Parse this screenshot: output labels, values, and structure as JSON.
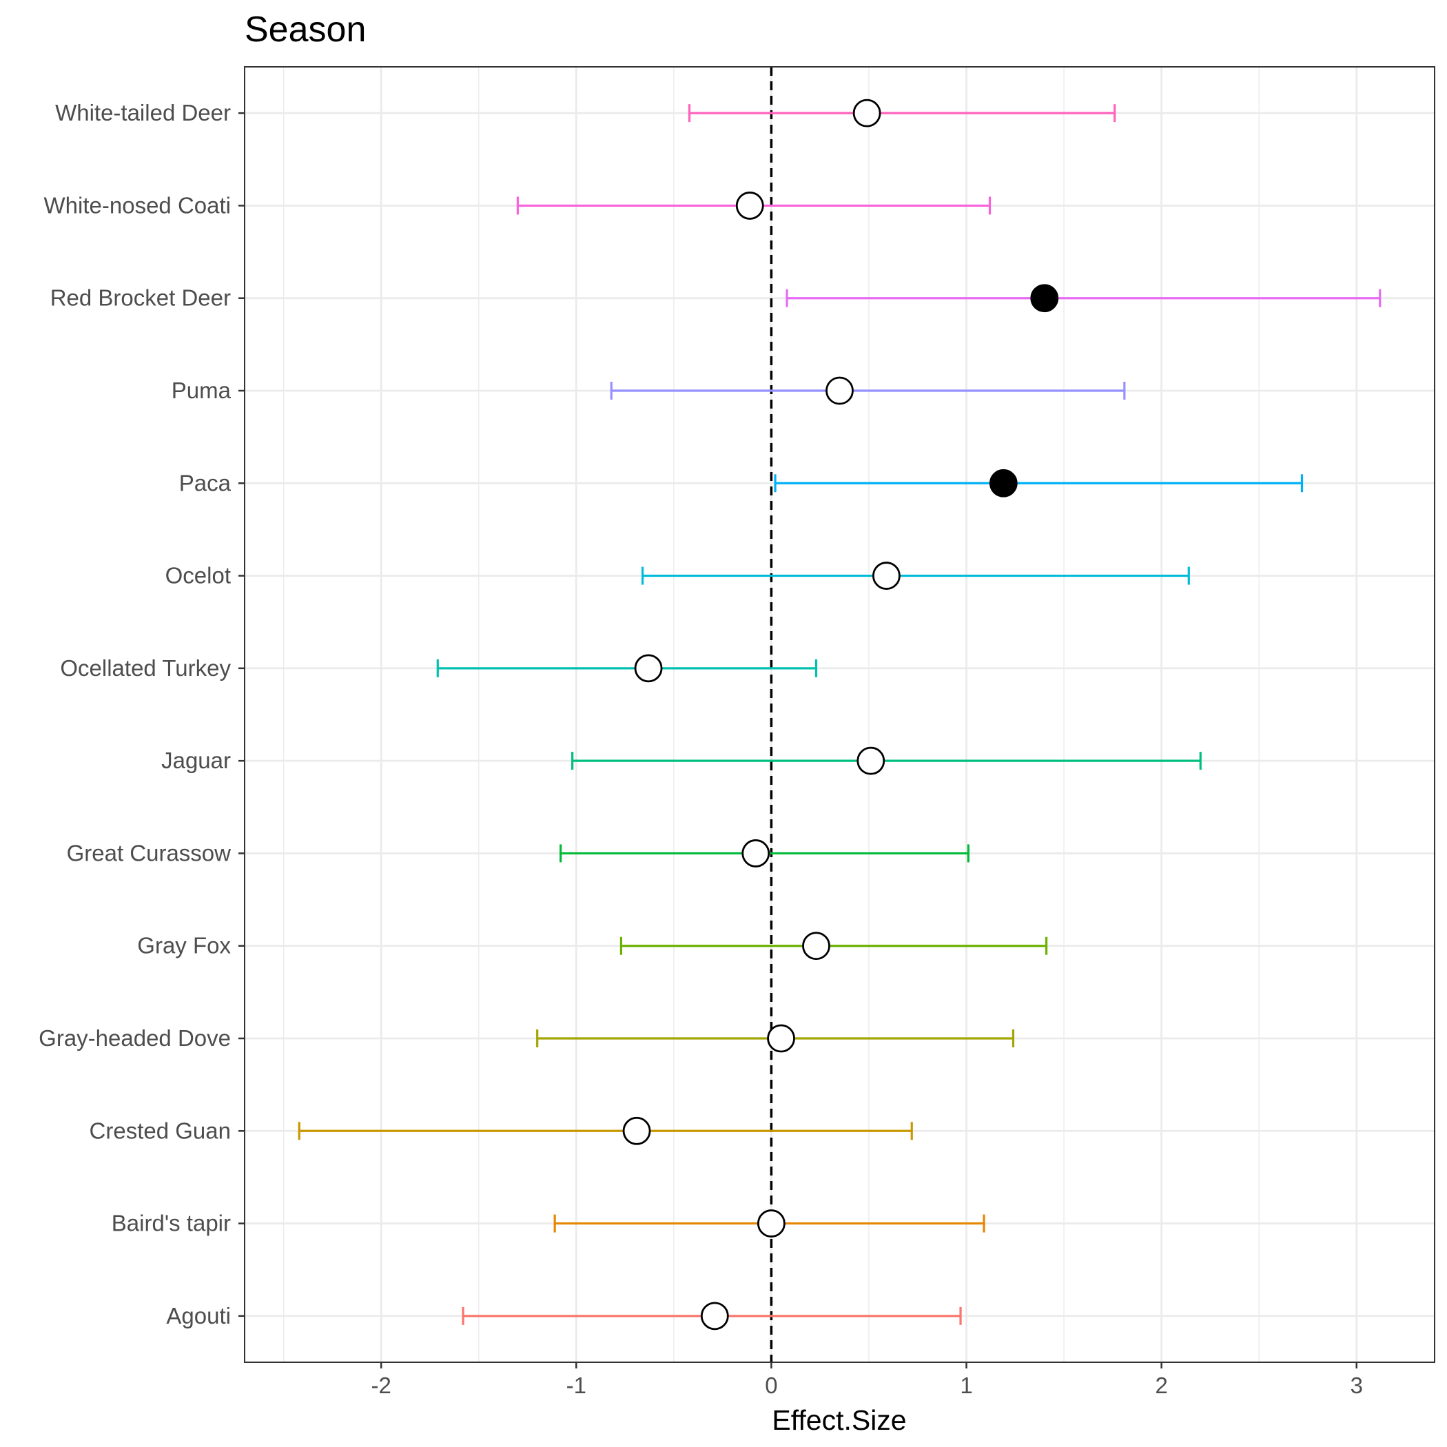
{
  "chart_data": {
    "type": "forest",
    "title": "Season",
    "xlabel": "Effect.Size",
    "ylabel": "",
    "xlim": [
      -2.7,
      3.4
    ],
    "xticks": [
      -2,
      -1,
      0,
      1,
      2,
      3
    ],
    "xtick_labels": [
      "-2",
      "-1",
      "0",
      "1",
      "2",
      "3"
    ],
    "reference_line": 0,
    "grid": true,
    "legend": "none",
    "categories": [
      "Agouti",
      "Baird's tapir",
      "Crested Guan",
      "Gray-headed Dove",
      "Gray Fox",
      "Great Curassow",
      "Jaguar",
      "Ocellated Turkey",
      "Ocelot",
      "Paca",
      "Puma",
      "Red Brocket Deer",
      "White-nosed Coati",
      "White-tailed Deer"
    ],
    "points": [
      {
        "species": "Agouti",
        "estimate": -0.29,
        "lower": -1.58,
        "upper": 0.97,
        "significant": false,
        "color": "#F8766D"
      },
      {
        "species": "Baird's tapir",
        "estimate": 0.0,
        "lower": -1.11,
        "upper": 1.09,
        "significant": false,
        "color": "#E58700"
      },
      {
        "species": "Crested Guan",
        "estimate": -0.69,
        "lower": -2.42,
        "upper": 0.72,
        "significant": false,
        "color": "#C99800"
      },
      {
        "species": "Gray-headed Dove",
        "estimate": 0.05,
        "lower": -1.2,
        "upper": 1.24,
        "significant": false,
        "color": "#A3A500"
      },
      {
        "species": "Gray Fox",
        "estimate": 0.23,
        "lower": -0.77,
        "upper": 1.41,
        "significant": false,
        "color": "#6BB100"
      },
      {
        "species": "Great Curassow",
        "estimate": -0.08,
        "lower": -1.08,
        "upper": 1.01,
        "significant": false,
        "color": "#00BA38"
      },
      {
        "species": "Jaguar",
        "estimate": 0.51,
        "lower": -1.02,
        "upper": 2.2,
        "significant": false,
        "color": "#00BF7D"
      },
      {
        "species": "Ocellated Turkey",
        "estimate": -0.63,
        "lower": -1.71,
        "upper": 0.23,
        "significant": false,
        "color": "#00C0AF"
      },
      {
        "species": "Ocelot",
        "estimate": 0.59,
        "lower": -0.66,
        "upper": 2.14,
        "significant": false,
        "color": "#00BCD8"
      },
      {
        "species": "Paca",
        "estimate": 1.19,
        "lower": 0.02,
        "upper": 2.72,
        "significant": true,
        "color": "#00B0F6"
      },
      {
        "species": "Puma",
        "estimate": 0.35,
        "lower": -0.82,
        "upper": 1.81,
        "significant": false,
        "color": "#9590FF"
      },
      {
        "species": "Red Brocket Deer",
        "estimate": 1.4,
        "lower": 0.08,
        "upper": 3.12,
        "significant": true,
        "color": "#E76BF3"
      },
      {
        "species": "White-nosed Coati",
        "estimate": -0.11,
        "lower": -1.3,
        "upper": 1.12,
        "significant": false,
        "color": "#FA62DB"
      },
      {
        "species": "White-tailed Deer",
        "estimate": 0.49,
        "lower": -0.42,
        "upper": 1.76,
        "significant": false,
        "color": "#FF62BC"
      }
    ]
  }
}
